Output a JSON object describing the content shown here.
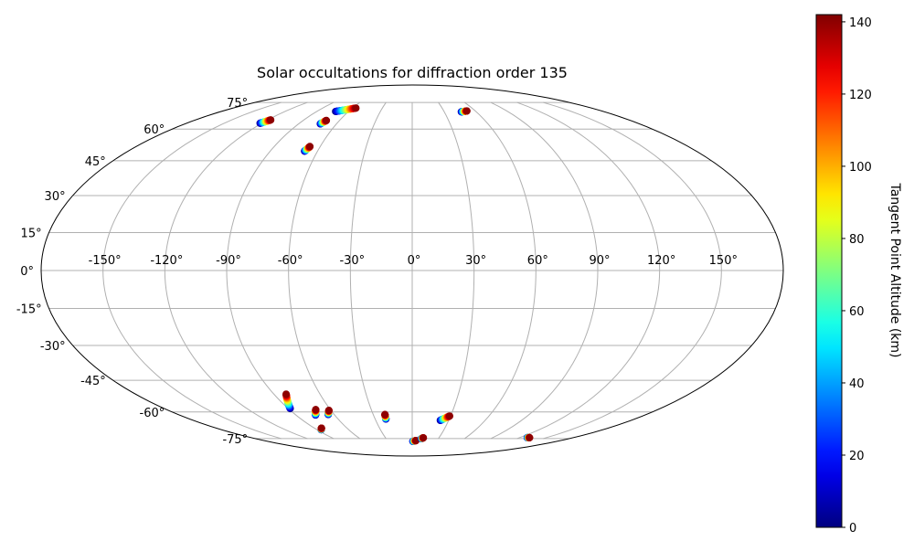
{
  "chart_data": {
    "type": "scatter",
    "projection": "mollweide",
    "title": "Solar occultations for diffraction order 135",
    "xlabel": "",
    "ylabel": "",
    "xlim": [
      -180,
      180
    ],
    "ylim": [
      -90,
      90
    ],
    "grid": true,
    "x_ticks": [
      -150,
      -120,
      -90,
      -60,
      -30,
      0,
      30,
      60,
      90,
      120,
      150
    ],
    "x_tick_labels": [
      "-150°",
      "-120°",
      "-90°",
      "-60°",
      "-30°",
      "0°",
      "30°",
      "60°",
      "90°",
      "120°",
      "150°"
    ],
    "y_ticks": [
      75,
      60,
      45,
      30,
      15,
      0,
      -15,
      -30,
      -45,
      -60,
      -75
    ],
    "y_tick_labels": [
      "75°",
      "60°",
      "45°",
      "30°",
      "15°",
      "0°",
      "-15°",
      "-30°",
      "-45°",
      "-60°",
      "-75°"
    ],
    "colorbar": {
      "label": "Tangent Point Altitude (km)",
      "colormap": "jet",
      "range": [
        0,
        142
      ],
      "ticks": [
        0,
        20,
        40,
        60,
        80,
        100,
        120,
        140
      ],
      "tick_labels": [
        "0",
        "20",
        "40",
        "60",
        "80",
        "100",
        "120",
        "140"
      ]
    },
    "series": [
      {
        "lon_range": [
          -72.2,
          -56.5
        ],
        "lat_range": [
          69.5,
          71.5
        ],
        "alt_range": [
          0,
          140
        ]
      },
      {
        "lon_range": [
          -121.3,
          -117.5
        ],
        "lat_range": [
          63.0,
          64.8
        ],
        "alt_range": [
          0,
          140
        ]
      },
      {
        "lon_range": [
          -68.2,
          -66.7
        ],
        "lat_range": [
          49.3,
          51.5
        ],
        "alt_range": [
          0,
          140
        ]
      },
      {
        "lon_range": [
          -72.8,
          -70.8
        ],
        "lat_range": [
          62.7,
          64.5
        ],
        "alt_range": [
          0,
          140
        ]
      },
      {
        "lon_range": [
          46.0,
          52.0
        ],
        "lat_range": [
          69.3,
          69.8
        ],
        "alt_range": [
          0,
          140
        ]
      },
      {
        "lon_range": [
          -88.6,
          -82.0
        ],
        "lat_range": [
          -58.3,
          -51.3
        ],
        "alt_range": [
          0,
          140
        ]
      },
      {
        "lon_range": [
          -74.8,
          -70.7
        ],
        "lat_range": [
          -61.6,
          -58.8
        ],
        "alt_range": [
          0,
          140
        ]
      },
      {
        "lon_range": [
          -64.6,
          -61.5
        ],
        "lat_range": [
          -61.3,
          -59.2
        ],
        "alt_range": [
          0,
          140
        ]
      },
      {
        "lon_range": [
          -86.0,
          -83.5
        ],
        "lat_range": [
          -69.6,
          -68.7
        ],
        "alt_range": [
          0,
          140
        ]
      },
      {
        "lon_range": [
          -21.3,
          -21.0
        ],
        "lat_range": [
          -63.7,
          -61.3
        ],
        "alt_range": [
          0,
          140
        ]
      },
      {
        "lon_range": [
          0.8,
          4.5
        ],
        "lat_range": [
          -76.8,
          -76.3
        ],
        "alt_range": [
          0,
          140
        ]
      },
      {
        "lon_range": [
          10.5,
          12.5
        ],
        "lat_range": [
          -75.0,
          -74.5
        ],
        "alt_range": [
          0,
          140
        ]
      },
      {
        "lon_range": [
          23.1,
          29.3
        ],
        "lat_range": [
          -64.4,
          -62.1
        ],
        "alt_range": [
          0,
          140
        ]
      },
      {
        "lon_range": [
          128.6,
          131.2
        ],
        "lat_range": [
          -74.4,
          -74.4
        ],
        "alt_range": [
          0,
          140
        ]
      }
    ]
  }
}
